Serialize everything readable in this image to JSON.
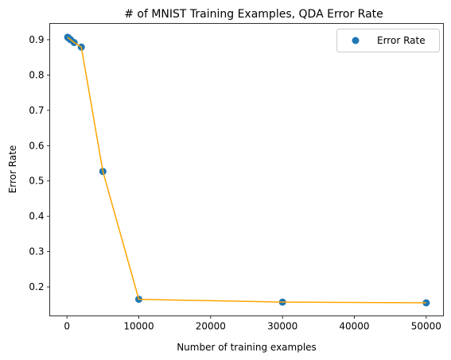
{
  "chart_data": {
    "type": "scatter",
    "title": "# of MNIST Training Examples, QDA Error Rate",
    "xlabel": "Number of training examples",
    "ylabel": "Error Rate",
    "xlim": [
      -2400,
      52400
    ],
    "ylim": [
      0.118,
      0.946
    ],
    "x_ticks": [
      0,
      10000,
      20000,
      30000,
      40000,
      50000
    ],
    "x_tick_labels": [
      "0",
      "10000",
      "20000",
      "30000",
      "40000",
      "50000"
    ],
    "y_ticks": [
      0.2,
      0.3,
      0.4,
      0.5,
      0.6,
      0.7,
      0.8,
      0.9
    ],
    "y_tick_labels": [
      "0.2",
      "0.3",
      "0.4",
      "0.5",
      "0.6",
      "0.7",
      "0.8",
      "0.9"
    ],
    "grid": false,
    "legend_position": "top-right",
    "series": [
      {
        "name": "Error Rate",
        "kind": "scatter",
        "color": "#1f77b4",
        "x": [
          100,
          200,
          500,
          1000,
          2000,
          5000,
          10000,
          30000,
          50000
        ],
        "y": [
          0.907,
          0.905,
          0.9,
          0.892,
          0.879,
          0.527,
          0.165,
          0.157,
          0.155
        ]
      },
      {
        "kind": "line",
        "color": "#ffa500",
        "x": [
          100,
          200,
          500,
          1000,
          2000,
          5000,
          10000,
          30000,
          50000
        ],
        "y": [
          0.907,
          0.905,
          0.9,
          0.892,
          0.879,
          0.527,
          0.165,
          0.157,
          0.155
        ]
      }
    ]
  }
}
